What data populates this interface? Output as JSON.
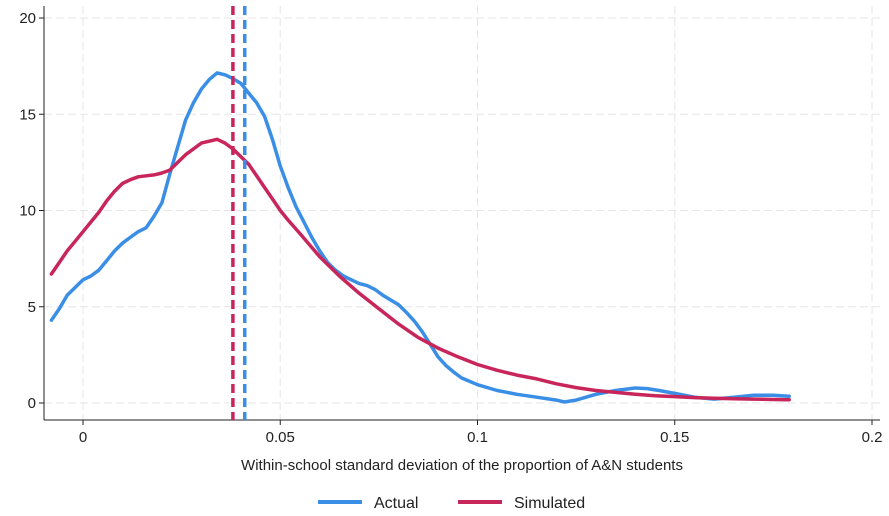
{
  "chart_data": {
    "type": "line",
    "xlabel": "Within-school standard deviation of the proportion of A&N students",
    "ylabel": "",
    "xlim": [
      -0.01,
      0.2
    ],
    "ylim": [
      0,
      20
    ],
    "x_ticks": [
      0,
      0.05,
      0.1,
      0.15,
      0.2
    ],
    "x_tick_labels": [
      "0",
      "0.05",
      "0.1",
      "0.15",
      "0.2"
    ],
    "y_ticks": [
      0,
      5,
      10,
      15,
      20
    ],
    "y_tick_labels": [
      "0",
      "5",
      "10",
      "15",
      "20"
    ],
    "grid": true,
    "legend_position": "bottom",
    "series": [
      {
        "name": "Actual",
        "color": "#3a8ee6",
        "x": [
          -0.008,
          -0.006,
          -0.004,
          -0.002,
          0,
          0.002,
          0.004,
          0.006,
          0.008,
          0.01,
          0.012,
          0.014,
          0.016,
          0.018,
          0.02,
          0.022,
          0.024,
          0.026,
          0.028,
          0.03,
          0.032,
          0.034,
          0.036,
          0.038,
          0.04,
          0.042,
          0.044,
          0.046,
          0.048,
          0.05,
          0.052,
          0.054,
          0.056,
          0.058,
          0.06,
          0.062,
          0.064,
          0.066,
          0.068,
          0.07,
          0.072,
          0.074,
          0.076,
          0.078,
          0.08,
          0.082,
          0.084,
          0.086,
          0.088,
          0.09,
          0.092,
          0.094,
          0.096,
          0.1,
          0.105,
          0.11,
          0.115,
          0.12,
          0.122,
          0.125,
          0.13,
          0.135,
          0.14,
          0.143,
          0.146,
          0.15,
          0.155,
          0.16,
          0.165,
          0.17,
          0.175,
          0.179
        ],
        "y": [
          4.3,
          4.9,
          5.6,
          6.0,
          6.4,
          6.6,
          6.9,
          7.4,
          7.9,
          8.3,
          8.6,
          8.9,
          9.1,
          9.7,
          10.4,
          11.9,
          13.3,
          14.7,
          15.6,
          16.3,
          16.8,
          17.15,
          17.05,
          16.85,
          16.6,
          16.1,
          15.6,
          14.9,
          13.7,
          12.3,
          11.2,
          10.2,
          9.4,
          8.6,
          7.9,
          7.3,
          6.9,
          6.6,
          6.4,
          6.2,
          6.1,
          5.9,
          5.6,
          5.35,
          5.1,
          4.7,
          4.25,
          3.7,
          3.05,
          2.4,
          1.95,
          1.6,
          1.3,
          0.95,
          0.65,
          0.45,
          0.3,
          0.15,
          0.05,
          0.15,
          0.45,
          0.65,
          0.78,
          0.75,
          0.65,
          0.5,
          0.3,
          0.2,
          0.3,
          0.4,
          0.4,
          0.35
        ]
      },
      {
        "name": "Simulated",
        "color": "#c8265b",
        "x": [
          -0.008,
          -0.006,
          -0.004,
          -0.002,
          0,
          0.002,
          0.004,
          0.006,
          0.008,
          0.01,
          0.012,
          0.014,
          0.016,
          0.018,
          0.02,
          0.022,
          0.024,
          0.026,
          0.028,
          0.03,
          0.032,
          0.034,
          0.036,
          0.038,
          0.04,
          0.042,
          0.044,
          0.046,
          0.048,
          0.05,
          0.052,
          0.055,
          0.06,
          0.065,
          0.07,
          0.075,
          0.08,
          0.085,
          0.09,
          0.095,
          0.1,
          0.105,
          0.11,
          0.115,
          0.12,
          0.125,
          0.13,
          0.135,
          0.14,
          0.145,
          0.15,
          0.155,
          0.16,
          0.165,
          0.17,
          0.175,
          0.179
        ],
        "y": [
          6.7,
          7.3,
          7.9,
          8.4,
          8.9,
          9.4,
          9.9,
          10.5,
          11.0,
          11.4,
          11.6,
          11.75,
          11.8,
          11.85,
          11.95,
          12.1,
          12.5,
          12.9,
          13.2,
          13.5,
          13.6,
          13.7,
          13.5,
          13.2,
          12.8,
          12.4,
          11.8,
          11.2,
          10.6,
          10.0,
          9.5,
          8.8,
          7.6,
          6.6,
          5.7,
          4.9,
          4.1,
          3.4,
          2.85,
          2.4,
          2.0,
          1.7,
          1.45,
          1.25,
          1.0,
          0.8,
          0.65,
          0.55,
          0.45,
          0.38,
          0.33,
          0.28,
          0.25,
          0.22,
          0.2,
          0.18,
          0.17
        ]
      }
    ],
    "vertical_lines": [
      {
        "x": 0.038,
        "color": "#c8265b",
        "style": "dashed",
        "series": "Simulated"
      },
      {
        "x": 0.041,
        "color": "#3a8ee6",
        "style": "dashed",
        "series": "Actual"
      }
    ]
  },
  "legend": {
    "actual_label": "Actual",
    "simulated_label": "Simulated"
  }
}
